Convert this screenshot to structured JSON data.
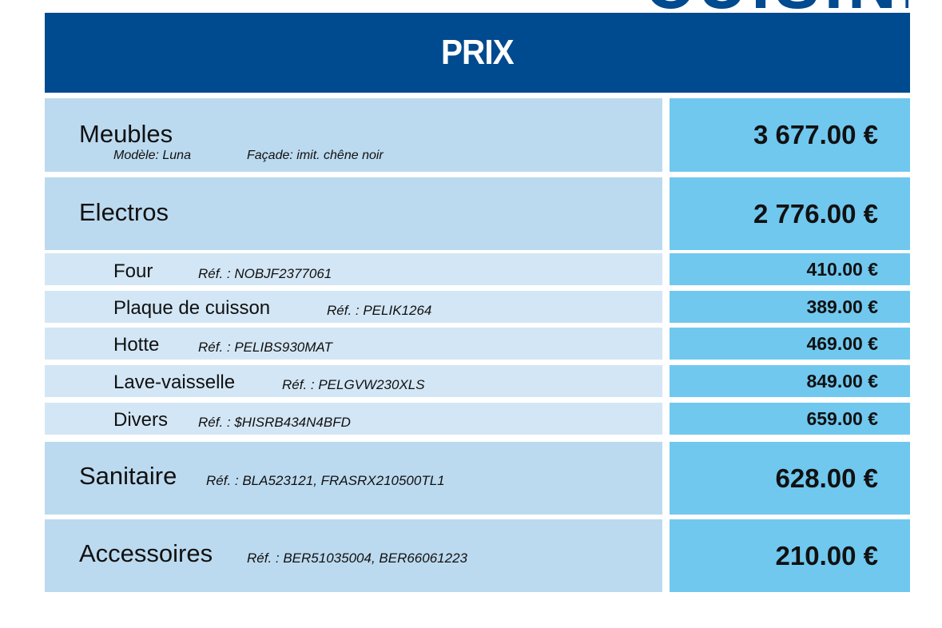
{
  "top_word": "CUISINE",
  "header": {
    "title": "PRIX"
  },
  "rows": {
    "meubles": {
      "label": "Meubles",
      "modele": "Modèle: Luna",
      "facade": "Façade: imit. chêne noir",
      "price": "3 677.00 €"
    },
    "electros": {
      "label": "Electros",
      "price": "2 776.00 €"
    },
    "four": {
      "label": "Four",
      "ref": "Réf. : NOBJF2377061",
      "price": "410.00 €"
    },
    "plaque": {
      "label": "Plaque de cuisson",
      "ref": "Réf. : PELIK1264",
      "price": "389.00 €"
    },
    "hotte": {
      "label": "Hotte",
      "ref": "Réf. : PELIBS930MAT",
      "price": "469.00 €"
    },
    "lave": {
      "label": "Lave-vaisselle",
      "ref": "Réf. : PELGVW230XLS",
      "price": "849.00 €"
    },
    "divers": {
      "label": "Divers",
      "ref": "Réf. : $HISRB434N4BFD",
      "price": "659.00 €"
    },
    "sanitaire": {
      "label": "Sanitaire",
      "ref": "Réf. : BLA523121, FRASRX210500TL1",
      "price": "628.00 €"
    },
    "accessoires": {
      "label": "Accessoires",
      "ref": "Réf. : BER51035004, BER66061223",
      "price": "210.00 €"
    }
  },
  "colors": {
    "header": "#004a8f",
    "main_row": "#bcdaef",
    "sub_row": "#d3e6f5",
    "price_cell": "#70c8ef"
  }
}
